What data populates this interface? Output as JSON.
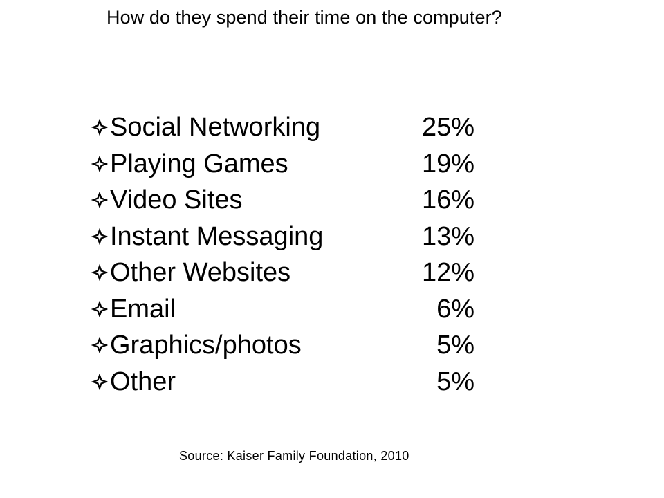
{
  "title": "How do they spend their time on the computer?",
  "bullet_icon": "four-petal-star-icon",
  "items": [
    {
      "label": "Social Networking",
      "value": "25%"
    },
    {
      "label": "Playing Games",
      "value": "19%"
    },
    {
      "label": "Video Sites",
      "value": "16%"
    },
    {
      "label": "Instant Messaging",
      "value": "13%"
    },
    {
      "label": "Other Websites",
      "value": "12%"
    },
    {
      "label": "Email",
      "value": "6%"
    },
    {
      "label": "Graphics/photos",
      "value": "5%"
    },
    {
      "label": "Other",
      "value": "5%"
    }
  ],
  "source": "Source: Kaiser Family Foundation, 2010"
}
